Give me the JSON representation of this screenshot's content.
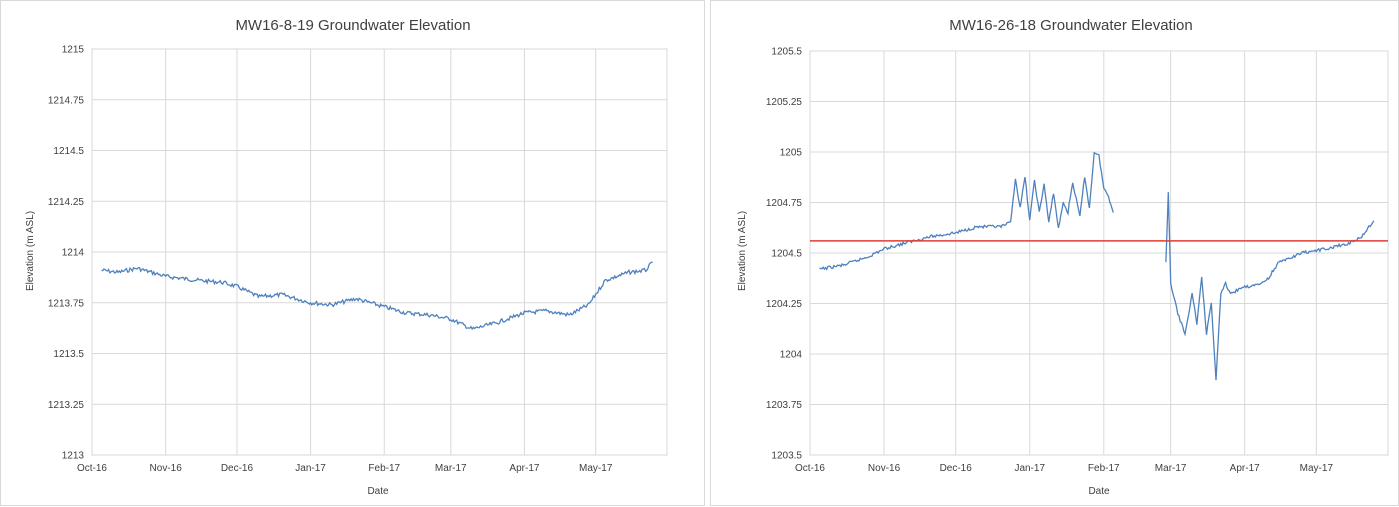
{
  "chart_data": [
    {
      "type": "line",
      "title": "MW16-8-19 Groundwater Elevation",
      "xlabel": "Date",
      "ylabel": "Elevation (m ASL)",
      "ylim": [
        1213,
        1215
      ],
      "yticks": [
        "1213",
        "1213.25",
        "1213.5",
        "1213.75",
        "1214",
        "1214.25",
        "1214.5",
        "1214.75",
        "1215"
      ],
      "xticks": [
        "Oct-16",
        "Nov-16",
        "Dec-16",
        "Jan-17",
        "Feb-17",
        "Mar-17",
        "Apr-17",
        "May-17"
      ],
      "grid": true,
      "line_color": "#4f81bd",
      "series": [
        {
          "x": [
            "2016-10-05",
            "2016-10-12",
            "2016-10-20",
            "2016-11-01",
            "2016-11-15",
            "2016-11-25",
            "2016-12-01",
            "2016-12-10",
            "2016-12-20",
            "2017-01-01",
            "2017-01-10",
            "2017-01-20",
            "2017-02-01",
            "2017-02-10",
            "2017-02-20",
            "2017-03-01",
            "2017-03-10",
            "2017-03-20",
            "2017-04-01",
            "2017-04-10",
            "2017-04-20",
            "2017-04-28",
            "2017-05-05",
            "2017-05-15",
            "2017-05-22",
            "2017-05-25"
          ],
          "values": [
            1213.91,
            1213.9,
            1213.92,
            1213.88,
            1213.86,
            1213.85,
            1213.83,
            1213.78,
            1213.79,
            1213.75,
            1213.74,
            1213.77,
            1213.73,
            1213.7,
            1213.69,
            1213.67,
            1213.62,
            1213.65,
            1213.7,
            1213.71,
            1213.69,
            1213.74,
            1213.86,
            1213.9,
            1213.91,
            1213.95
          ]
        }
      ]
    },
    {
      "type": "line",
      "title": "MW16-26-18 Groundwater Elevation",
      "xlabel": "Date",
      "ylabel": "Elevation (m ASL)",
      "ylim": [
        1203.5,
        1205.5
      ],
      "yticks": [
        "1203.5",
        "1203.75",
        "1204",
        "1204.25",
        "1204.5",
        "1204.75",
        "1205",
        "1205.25",
        "1205.5"
      ],
      "xticks": [
        "Oct-16",
        "Nov-16",
        "Dec-16",
        "Jan-17",
        "Feb-17",
        "Mar-17",
        "Apr-17",
        "May-17"
      ],
      "grid": true,
      "line_color": "#4f81bd",
      "reference_line": {
        "y": 1204.56,
        "color": "#e03c31"
      },
      "series": [
        {
          "segments": [
            {
              "x": [
                "2016-10-05",
                "2016-10-15",
                "2016-10-25",
                "2016-11-01",
                "2016-11-10",
                "2016-11-20",
                "2016-12-01",
                "2016-12-10",
                "2016-12-20",
                "2016-12-24",
                "2016-12-26",
                "2016-12-28",
                "2016-12-30",
                "2017-01-01",
                "2017-01-03",
                "2017-01-05",
                "2017-01-07",
                "2017-01-09",
                "2017-01-11",
                "2017-01-13",
                "2017-01-15",
                "2017-01-17",
                "2017-01-19",
                "2017-01-22",
                "2017-01-24",
                "2017-01-26",
                "2017-01-28",
                "2017-01-30",
                "2017-02-01",
                "2017-02-03",
                "2017-02-05"
              ],
              "values": [
                1204.42,
                1204.44,
                1204.48,
                1204.52,
                1204.55,
                1204.58,
                1204.6,
                1204.63,
                1204.63,
                1204.65,
                1204.87,
                1204.72,
                1204.88,
                1204.66,
                1204.86,
                1204.7,
                1204.84,
                1204.65,
                1204.8,
                1204.62,
                1204.75,
                1204.7,
                1204.85,
                1204.68,
                1204.88,
                1204.72,
                1205.0,
                1204.98,
                1204.82,
                1204.78,
                1204.7
              ]
            },
            {
              "x": [
                "2017-02-27",
                "2017-02-28",
                "2017-03-01",
                "2017-03-04",
                "2017-03-07",
                "2017-03-10",
                "2017-03-12",
                "2017-03-14",
                "2017-03-16",
                "2017-03-18",
                "2017-03-20",
                "2017-03-22",
                "2017-03-24",
                "2017-03-26",
                "2017-04-01",
                "2017-04-10",
                "2017-04-15",
                "2017-04-25",
                "2017-05-05",
                "2017-05-15",
                "2017-05-20",
                "2017-05-25"
              ],
              "values": [
                1204.45,
                1204.8,
                1204.35,
                1204.2,
                1204.1,
                1204.3,
                1204.15,
                1204.38,
                1204.1,
                1204.25,
                1203.87,
                1204.3,
                1204.35,
                1204.3,
                1204.33,
                1204.36,
                1204.45,
                1204.5,
                1204.52,
                1204.55,
                1204.58,
                1204.66
              ]
            }
          ]
        }
      ]
    }
  ]
}
